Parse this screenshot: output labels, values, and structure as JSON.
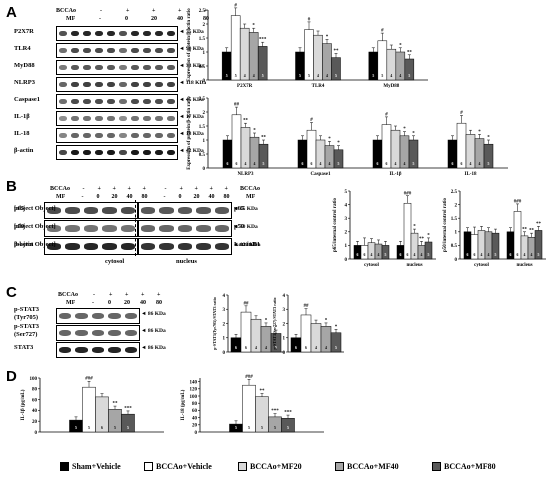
{
  "panels": {
    "A": "A",
    "B": "B",
    "C": "C",
    "D": "D"
  },
  "groups": {
    "bccao": "BCCAo",
    "mf": "MF",
    "bccao_signs": [
      "-",
      "+",
      "+",
      "+",
      "+"
    ],
    "mf_doses": [
      "-",
      "0",
      "20",
      "40",
      "80"
    ]
  },
  "blotA": {
    "rows": [
      {
        "name": "P2X7R",
        "kda": "◄ 75 KDa"
      },
      {
        "name": "TLR4",
        "kda": "◄ 90 KDa"
      },
      {
        "name": "MyD88",
        "kda": "◄ 33 KDa"
      },
      {
        "name": "NLRP3",
        "kda": "◄ 118 KDa"
      },
      {
        "name": "Caspase1",
        "kda": "◄ 45 KDa"
      },
      {
        "name": "IL-1β",
        "kda": "◄ 17 KDa"
      },
      {
        "name": "IL-18",
        "kda": "◄ 18 KDa"
      },
      {
        "name": "β-actin",
        "kda": "◄ 42 KDa"
      }
    ]
  },
  "blotB": {
    "rows_left": [
      "p65",
      "p50",
      "β-actin"
    ],
    "rows_right": [
      {
        "name": "p65",
        "kda": "◄ 65 KDa"
      },
      {
        "name": "p50",
        "kda": "◄ 50 KDa"
      },
      {
        "name": "LaminB1",
        "kda": "◄ 120 KDa"
      }
    ],
    "cytosol": "cytosol",
    "nucleus": "nucleus"
  },
  "blotC": {
    "rows": [
      {
        "name": "p-STAT3",
        "name2": "(Tyr705)",
        "kda": "◄ 86 KDa"
      },
      {
        "name": "p-STAT3",
        "name2": "(Ser727)",
        "kda": "◄ 86 KDa"
      },
      {
        "name": "STAT3",
        "name2": "",
        "kda": "◄ 86 KDa"
      }
    ]
  },
  "legend": [
    {
      "label": "Sham+Vehicle",
      "color": "#000000"
    },
    {
      "label": "BCCAo+Vehicle",
      "color": "#ffffff"
    },
    {
      "label": "BCCAo+MF20",
      "color": "#d9d9d9"
    },
    {
      "label": "BCCAo+MF40",
      "color": "#a6a6a6"
    },
    {
      "label": "BCCAo+MF80",
      "color": "#595959"
    }
  ],
  "bar_colors": [
    "#000000",
    "#ffffff",
    "#d9d9d9",
    "#a6a6a6",
    "#595959"
  ],
  "chart_data": [
    {
      "id": "A1",
      "type": "bar",
      "ylabel": "Expression of protein/β-actin ratio",
      "ylim": [
        0,
        2.5
      ],
      "yticks": [
        "0",
        "0.5",
        "1",
        "1.5",
        "2",
        "2.5"
      ],
      "categories": [
        "P2X7R",
        "TLR4",
        "MyD88"
      ],
      "values": [
        [
          1,
          2.3,
          1.85,
          1.7,
          1.2
        ],
        [
          1,
          1.8,
          1.6,
          1.3,
          0.8
        ],
        [
          1,
          1.4,
          1.1,
          1.0,
          0.75
        ]
      ],
      "n": [
        "5",
        "5",
        "4",
        "4",
        "5"
      ],
      "sig": [
        [
          "",
          "#",
          "",
          "*",
          "***"
        ],
        [
          "",
          "#",
          "",
          "*",
          "**"
        ],
        [
          "",
          "#",
          "",
          "*",
          "**"
        ]
      ]
    },
    {
      "id": "A2",
      "type": "bar",
      "ylabel": "Expression of protein/β-actin ratio",
      "ylim": [
        0,
        2.5
      ],
      "yticks": [
        "0",
        "0.5",
        "1",
        "1.5",
        "2",
        "2.5"
      ],
      "categories": [
        "NLRP3",
        "Caspase1",
        "IL-1β",
        "IL-18"
      ],
      "values": [
        [
          1,
          1.9,
          1.45,
          1.1,
          0.85
        ],
        [
          1,
          1.35,
          1.0,
          0.8,
          0.65
        ],
        [
          1,
          1.55,
          1.35,
          1.15,
          1.0
        ],
        [
          1,
          1.6,
          1.2,
          1.05,
          0.85
        ]
      ],
      "n": [
        "6",
        "6",
        "4",
        "4",
        "5"
      ],
      "sig": [
        [
          "",
          "##",
          "**",
          "*",
          "**"
        ],
        [
          "",
          "#",
          "",
          "*",
          "*"
        ],
        [
          "",
          "#",
          "",
          "*",
          "*"
        ],
        [
          "",
          "#",
          "",
          "*",
          "*"
        ]
      ]
    },
    {
      "id": "B1",
      "type": "bar",
      "ylabel": "p65/internal control ratio",
      "ylim": [
        0,
        5
      ],
      "yticks": [
        "0",
        "1",
        "2",
        "3",
        "4",
        "5"
      ],
      "categories": [
        "cytosol",
        "nucleus"
      ],
      "values": [
        [
          1,
          1.0,
          1.2,
          1.1,
          1.0
        ],
        [
          1,
          4.1,
          1.9,
          1.0,
          1.25
        ]
      ],
      "n": [
        "6",
        "6",
        "4",
        "4",
        "5"
      ],
      "sig": [
        [
          "",
          "",
          "",
          "",
          ""
        ],
        [
          "",
          "###",
          "*",
          "**",
          "*"
        ]
      ]
    },
    {
      "id": "B2",
      "type": "bar",
      "ylabel": "p50/internal control ratio",
      "ylim": [
        0,
        2.5
      ],
      "yticks": [
        "0",
        "0.5",
        "1",
        "1.5",
        "2",
        "2.5"
      ],
      "categories": [
        "cytosol",
        "nucleus"
      ],
      "values": [
        [
          1,
          0.9,
          1.05,
          1.0,
          0.95
        ],
        [
          1,
          1.75,
          0.85,
          0.8,
          1.05
        ]
      ],
      "n": [
        "6",
        "6",
        "4",
        "4",
        "5"
      ],
      "sig": [
        [
          "",
          "",
          "",
          "",
          ""
        ],
        [
          "",
          "###",
          "**",
          "**",
          "**"
        ]
      ]
    },
    {
      "id": "C1",
      "type": "bar",
      "ylabel": "p-STAT3(Tyr705)/STAT3 ratio",
      "ylim": [
        0,
        4
      ],
      "yticks": [
        "0",
        "1",
        "2",
        "3",
        "4"
      ],
      "categories": [
        ""
      ],
      "values": [
        [
          1,
          2.8,
          2.3,
          1.8,
          1.3
        ]
      ],
      "n": [
        "6",
        "6",
        "4",
        "4",
        "5"
      ],
      "sig": [
        [
          "",
          "##",
          "",
          "*",
          "*"
        ]
      ]
    },
    {
      "id": "C2",
      "type": "bar",
      "ylabel": "p-STAT3(Ser727)/STAT3 ratio",
      "ylim": [
        0,
        4
      ],
      "yticks": [
        "0",
        "1",
        "2",
        "3",
        "4"
      ],
      "categories": [
        ""
      ],
      "values": [
        [
          1,
          2.6,
          2.0,
          1.8,
          1.35
        ]
      ],
      "n": [
        "6",
        "6",
        "4",
        "4",
        "5"
      ],
      "sig": [
        [
          "",
          "##",
          "",
          "*",
          "*"
        ]
      ]
    },
    {
      "id": "D1",
      "type": "bar",
      "ylabel": "IL-1β (pg/mL)",
      "ylim": [
        0,
        100
      ],
      "yticks": [
        "0",
        "20",
        "40",
        "60",
        "80",
        "100"
      ],
      "categories": [
        ""
      ],
      "values": [
        [
          22,
          83,
          65,
          42,
          33
        ]
      ],
      "n": [
        "5",
        "5",
        "6",
        "5",
        "5"
      ],
      "sig": [
        [
          "",
          "###",
          "",
          "**",
          "***"
        ]
      ]
    },
    {
      "id": "D2",
      "type": "bar",
      "ylabel": "IL-18 (pg/mL)",
      "ylim": [
        0,
        150
      ],
      "yticks": [
        "0",
        "20",
        "40",
        "60",
        "80",
        "100",
        "120",
        "140"
      ],
      "categories": [
        ""
      ],
      "values": [
        [
          22,
          130,
          98,
          42,
          38
        ]
      ],
      "n": [
        "5",
        "5",
        "5",
        "5",
        "5"
      ],
      "sig": [
        [
          "",
          "###",
          "**",
          "***",
          "***"
        ]
      ]
    }
  ]
}
